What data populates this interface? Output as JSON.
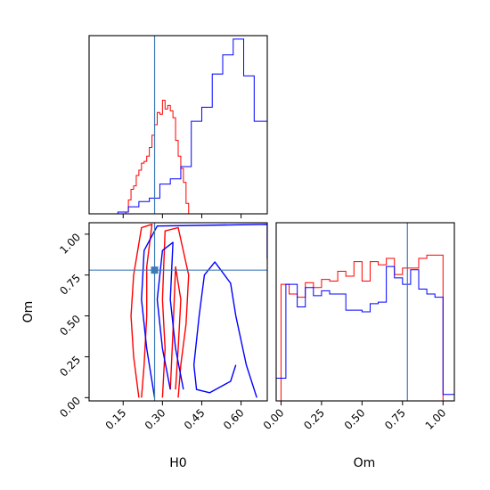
{
  "chart_data": {
    "type": "corner",
    "parameters": [
      "H0",
      "Om"
    ],
    "truths": {
      "H0": 0.27,
      "Om": 0.78
    },
    "colors": {
      "series_a": "#ff0000",
      "series_b": "#0000ff",
      "truth": "#3d7ab8"
    },
    "grid": false,
    "legend": "none",
    "panels": [
      {
        "id": "h0-marginal",
        "type": "histogram",
        "parameter": "H0",
        "xlim": [
          0.02,
          0.7
        ],
        "ylim": [
          0,
          1.02
        ],
        "x_ticks": [
          0.15,
          0.3,
          0.45,
          0.6
        ],
        "series": [
          {
            "color": "series_a",
            "bins": [
              0.16,
              0.17,
              0.18,
              0.19,
              0.2,
              0.21,
              0.22,
              0.23,
              0.24,
              0.25,
              0.26,
              0.27,
              0.28,
              0.29,
              0.3,
              0.31,
              0.32,
              0.33,
              0.34,
              0.35,
              0.36,
              0.37,
              0.38,
              0.39,
              0.4
            ],
            "values": [
              0.01,
              0.08,
              0.14,
              0.16,
              0.22,
              0.25,
              0.29,
              0.3,
              0.33,
              0.38,
              0.45,
              0.51,
              0.58,
              0.57,
              0.65,
              0.6,
              0.62,
              0.59,
              0.55,
              0.42,
              0.33,
              0.26,
              0.18,
              0.06,
              0.0
            ]
          },
          {
            "color": "series_b",
            "bins": [
              0.13,
              0.17,
              0.21,
              0.25,
              0.29,
              0.33,
              0.37,
              0.41,
              0.45,
              0.49,
              0.53,
              0.57,
              0.61,
              0.65,
              0.7
            ],
            "values": [
              0.01,
              0.04,
              0.07,
              0.09,
              0.17,
              0.2,
              0.27,
              0.53,
              0.61,
              0.8,
              0.91,
              1.0,
              0.79,
              0.53,
              0.05
            ]
          }
        ]
      },
      {
        "id": "om-vs-h0",
        "type": "contour",
        "x_parameter": "H0",
        "y_parameter": "Om",
        "xlim": [
          0.02,
          0.7
        ],
        "ylim": [
          -0.02,
          1.07
        ],
        "x_ticks": [
          0.15,
          0.3,
          0.45,
          0.6
        ],
        "y_ticks": [
          0.0,
          0.25,
          0.5,
          0.75,
          1.0
        ],
        "contours": [
          {
            "color": "series_a",
            "levels": [
              [
                [
                  0.21,
                  0.0
                ],
                [
                  0.19,
                  0.25
                ],
                [
                  0.18,
                  0.5
                ],
                [
                  0.19,
                  0.75
                ],
                [
                  0.22,
                  1.04
                ],
                [
                  0.26,
                  1.06
                ],
                [
                  0.24,
                  0.8
                ],
                [
                  0.24,
                  0.5
                ],
                [
                  0.23,
                  0.2
                ],
                [
                  0.22,
                  0.0
                ]
              ],
              [
                [
                  0.3,
                  0.0
                ],
                [
                  0.31,
                  0.3
                ],
                [
                  0.3,
                  0.6
                ],
                [
                  0.31,
                  1.02
                ],
                [
                  0.36,
                  1.04
                ],
                [
                  0.4,
                  0.75
                ],
                [
                  0.39,
                  0.45
                ],
                [
                  0.37,
                  0.2
                ],
                [
                  0.36,
                  0.0
                ]
              ],
              [
                [
                  0.33,
                  0.05
                ],
                [
                  0.34,
                  0.4
                ],
                [
                  0.35,
                  0.8
                ],
                [
                  0.37,
                  0.6
                ],
                [
                  0.36,
                  0.3
                ],
                [
                  0.35,
                  0.05
                ]
              ]
            ]
          },
          {
            "color": "series_b",
            "levels": [
              [
                [
                  0.27,
                  0.0
                ],
                [
                  0.24,
                  0.3
                ],
                [
                  0.22,
                  0.6
                ],
                [
                  0.23,
                  0.9
                ],
                [
                  0.28,
                  1.05
                ],
                [
                  0.7,
                  1.06
                ],
                [
                  0.7,
                  0.85
                ]
              ],
              [
                [
                  0.66,
                  0.0
                ],
                [
                  0.62,
                  0.2
                ],
                [
                  0.58,
                  0.5
                ],
                [
                  0.56,
                  0.7
                ],
                [
                  0.5,
                  0.83
                ],
                [
                  0.46,
                  0.75
                ],
                [
                  0.44,
                  0.5
                ],
                [
                  0.42,
                  0.2
                ],
                [
                  0.43,
                  0.05
                ],
                [
                  0.48,
                  0.03
                ],
                [
                  0.56,
                  0.1
                ],
                [
                  0.58,
                  0.2
                ]
              ],
              [
                [
                  0.33,
                  0.05
                ],
                [
                  0.3,
                  0.3
                ],
                [
                  0.28,
                  0.6
                ],
                [
                  0.3,
                  0.9
                ],
                [
                  0.34,
                  0.95
                ],
                [
                  0.33,
                  0.6
                ],
                [
                  0.35,
                  0.3
                ],
                [
                  0.38,
                  0.05
                ]
              ]
            ]
          }
        ]
      },
      {
        "id": "om-marginal",
        "type": "histogram",
        "parameter": "Om",
        "xlim": [
          -0.03,
          1.07
        ],
        "ylim": [
          0,
          1.1
        ],
        "x_ticks": [
          0.0,
          0.25,
          0.5,
          0.75,
          1.0
        ],
        "series": [
          {
            "color": "series_a",
            "bins": [
              0.0,
              0.05,
              0.1,
              0.15,
              0.2,
              0.25,
              0.3,
              0.35,
              0.4,
              0.45,
              0.5,
              0.55,
              0.6,
              0.65,
              0.7,
              0.75,
              0.8,
              0.85,
              0.9,
              0.95,
              1.0
            ],
            "values": [
              0.72,
              0.66,
              0.64,
              0.73,
              0.7,
              0.75,
              0.74,
              0.8,
              0.77,
              0.86,
              0.74,
              0.86,
              0.84,
              0.88,
              0.78,
              0.82,
              0.82,
              0.88,
              0.9,
              0.9
            ]
          },
          {
            "color": "series_b",
            "bins": [
              -0.03,
              0.03,
              0.1,
              0.15,
              0.2,
              0.25,
              0.3,
              0.35,
              0.4,
              0.45,
              0.5,
              0.55,
              0.6,
              0.65,
              0.7,
              0.75,
              0.8,
              0.85,
              0.9,
              0.95,
              1.0,
              1.07
            ],
            "values": [
              0.14,
              0.72,
              0.58,
              0.7,
              0.65,
              0.68,
              0.66,
              0.66,
              0.56,
              0.56,
              0.55,
              0.6,
              0.61,
              0.83,
              0.76,
              0.72,
              0.81,
              0.69,
              0.66,
              0.64,
              0.04
            ]
          }
        ]
      }
    ],
    "xlabels": {
      "contour": "H0",
      "om_marginal": "Om"
    },
    "ylabels": {
      "contour": "Om"
    }
  }
}
